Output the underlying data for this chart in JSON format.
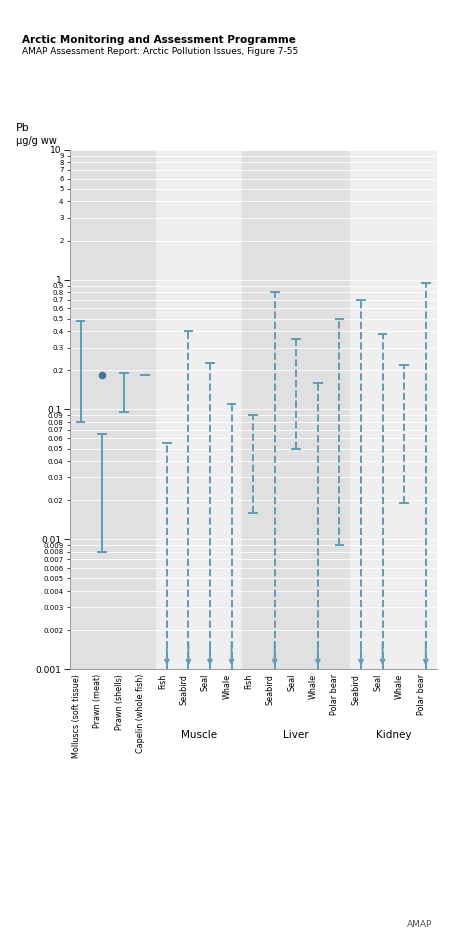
{
  "title1": "Arctic Monitoring and Assessment Programme",
  "title2": "AMAP Assessment Report: Arctic Pollution Issues, Figure 7-55",
  "ylabel1": "Pb",
  "ylabel2": "µg/g ww",
  "ymin": 0.001,
  "ymax": 10.0,
  "categories": [
    "Molluscs (soft tissue)",
    "Prawn (meat)",
    "Prawn (shells)",
    "Capelin (whole fish)",
    "Fish",
    "Seabird",
    "Seal",
    "Whale",
    "Fish",
    "Seabird",
    "Seal",
    "Whale",
    "Polar bear",
    "Seabird",
    "Seal",
    "Whale",
    "Polar bear"
  ],
  "groups": [
    {
      "name": "",
      "start": 0,
      "end": 3,
      "bg": "#e0e0e0"
    },
    {
      "name": "Muscle",
      "start": 4,
      "end": 7,
      "bg": "#efefef"
    },
    {
      "name": "Liver",
      "start": 8,
      "end": 12,
      "bg": "#e0e0e0"
    },
    {
      "name": "Kidney",
      "start": 13,
      "end": 16,
      "bg": "#efefef"
    }
  ],
  "bars": [
    {
      "idx": 0,
      "lo": 0.08,
      "hi": 0.48,
      "solid": true,
      "arrow": false,
      "dot": null
    },
    {
      "idx": 1,
      "lo": 0.008,
      "hi": 0.065,
      "solid": true,
      "arrow": false,
      "dot": null
    },
    {
      "idx": 2,
      "lo": 0.095,
      "hi": 0.19,
      "solid": true,
      "arrow": false,
      "dot": null
    },
    {
      "idx": 3,
      "lo": 0.185,
      "hi": 0.185,
      "solid": true,
      "arrow": false,
      "dot": 0.185
    },
    {
      "idx": 4,
      "lo": 0.001,
      "hi": 0.055,
      "solid": false,
      "arrow": true,
      "dot": null
    },
    {
      "idx": 5,
      "lo": 0.001,
      "hi": 0.4,
      "solid": false,
      "arrow": true,
      "dot": null
    },
    {
      "idx": 6,
      "lo": 0.001,
      "hi": 0.23,
      "solid": false,
      "arrow": true,
      "dot": null
    },
    {
      "idx": 7,
      "lo": 0.001,
      "hi": 0.11,
      "solid": false,
      "arrow": true,
      "dot": null
    },
    {
      "idx": 8,
      "lo": 0.016,
      "hi": 0.09,
      "solid": false,
      "arrow": false,
      "dot": null
    },
    {
      "idx": 9,
      "lo": 0.001,
      "hi": 0.8,
      "solid": false,
      "arrow": true,
      "dot": null
    },
    {
      "idx": 10,
      "lo": 0.05,
      "hi": 0.35,
      "solid": false,
      "arrow": false,
      "dot": null
    },
    {
      "idx": 11,
      "lo": 0.001,
      "hi": 0.16,
      "solid": false,
      "arrow": true,
      "dot": null
    },
    {
      "idx": 12,
      "lo": 0.009,
      "hi": 0.5,
      "solid": false,
      "arrow": false,
      "dot": null
    },
    {
      "idx": 13,
      "lo": 0.001,
      "hi": 0.7,
      "solid": false,
      "arrow": true,
      "dot": null
    },
    {
      "idx": 14,
      "lo": 0.001,
      "hi": 0.38,
      "solid": false,
      "arrow": true,
      "dot": null
    },
    {
      "idx": 15,
      "lo": 0.019,
      "hi": 0.22,
      "solid": false,
      "arrow": false,
      "dot": null
    },
    {
      "idx": 16,
      "lo": 0.001,
      "hi": 0.95,
      "solid": false,
      "arrow": true,
      "dot": null
    }
  ],
  "dot_items": [
    {
      "idx": 1,
      "val": 0.185
    }
  ],
  "line_color": "#5b9db8",
  "dot_color": "#3a7a9c",
  "fig_bg": "#ffffff",
  "footer": "AMAP"
}
